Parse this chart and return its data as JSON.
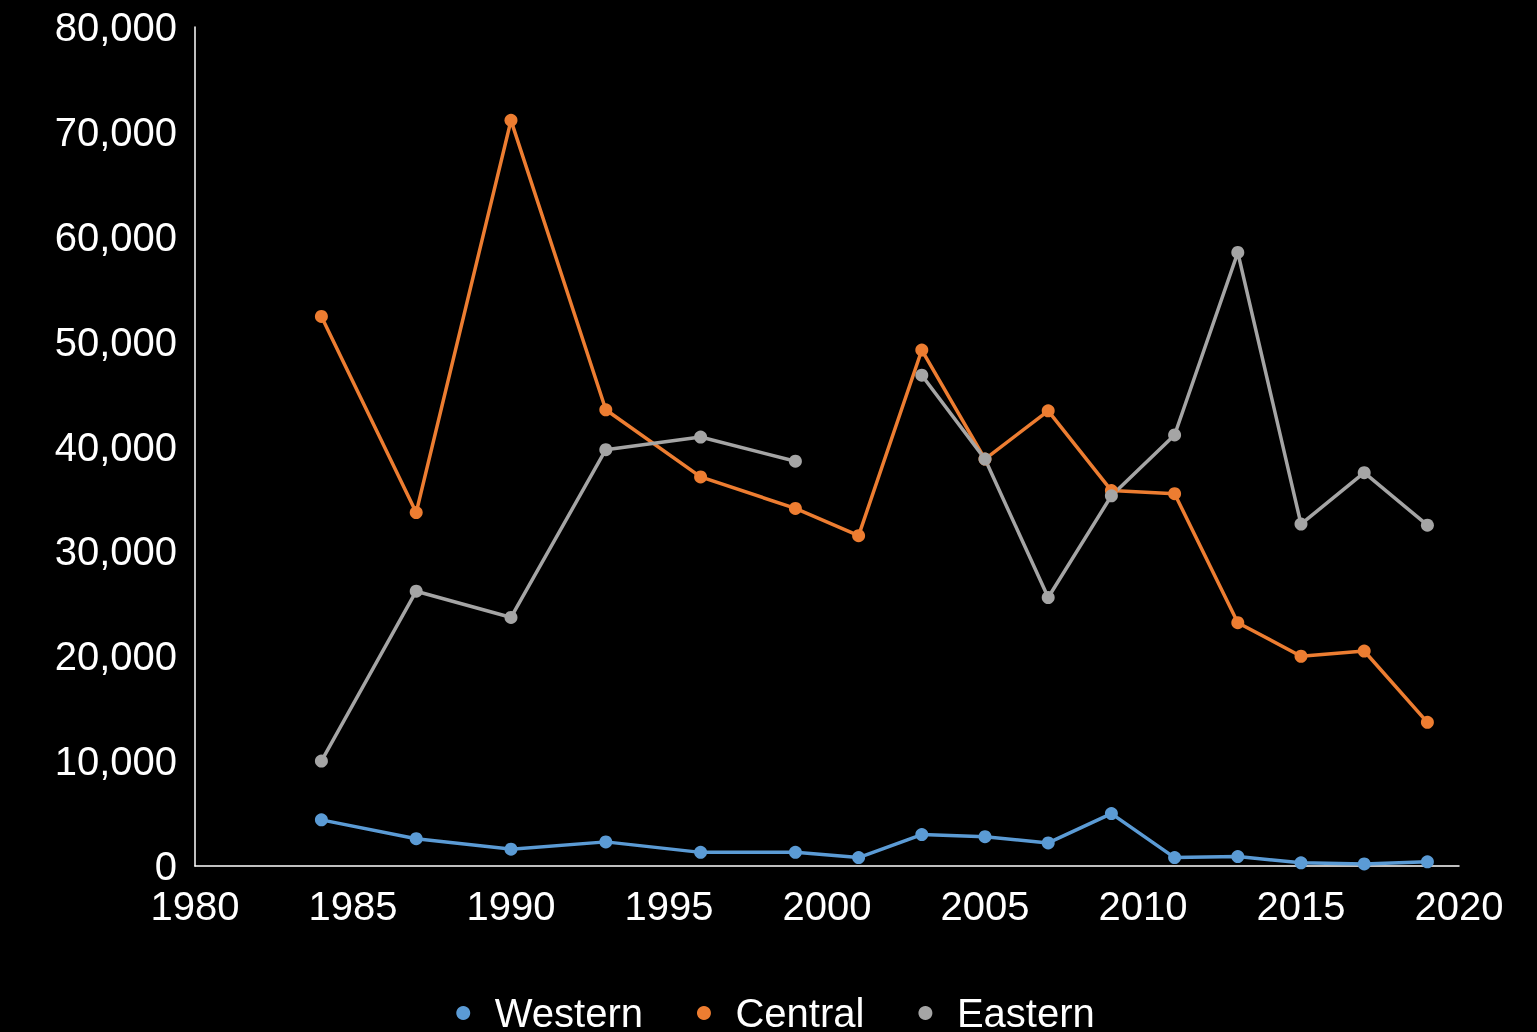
{
  "chart_data": {
    "type": "line",
    "x": [
      1984,
      1987,
      1990,
      1993,
      1996,
      1999,
      2001,
      2003,
      2005,
      2007,
      2009,
      2011,
      2013,
      2015,
      2017,
      2019
    ],
    "series": [
      {
        "name": "Western",
        "color": "#5b9bd5",
        "values": [
          4400,
          2600,
          1600,
          2300,
          1300,
          1300,
          800,
          3000,
          2800,
          2200,
          5000,
          800,
          900,
          300,
          200,
          400
        ]
      },
      {
        "name": "Central",
        "color": "#ed7d31",
        "values": [
          52400,
          33700,
          71100,
          43500,
          37100,
          34100,
          31500,
          49200,
          38800,
          43400,
          35800,
          35500,
          23200,
          20000,
          20500,
          13700
        ]
      },
      {
        "name": "Eastern",
        "color": "#a5a5a5",
        "values": [
          10000,
          26200,
          23700,
          39700,
          40900,
          38600,
          null,
          46800,
          38800,
          25600,
          35300,
          41100,
          58500,
          32600,
          37500,
          32500
        ]
      }
    ],
    "xlim": [
      1980,
      2020
    ],
    "xticks": [
      1980,
      1985,
      1990,
      1995,
      2000,
      2005,
      2010,
      2015,
      2020
    ],
    "ylim": [
      0,
      80000
    ],
    "yticks": [
      {
        "value": 0,
        "label": "0"
      },
      {
        "value": 10000,
        "label": "10,000"
      },
      {
        "value": 20000,
        "label": "20,000"
      },
      {
        "value": 30000,
        "label": "30,000"
      },
      {
        "value": 40000,
        "label": "40,000"
      },
      {
        "value": 50000,
        "label": "50,000"
      },
      {
        "value": 60000,
        "label": "60,000"
      },
      {
        "value": 70000,
        "label": "70,000"
      },
      {
        "value": 80000,
        "label": "80,000"
      }
    ],
    "grid": false,
    "legend": "bottom",
    "marker": "circle",
    "line_style": "solid"
  }
}
